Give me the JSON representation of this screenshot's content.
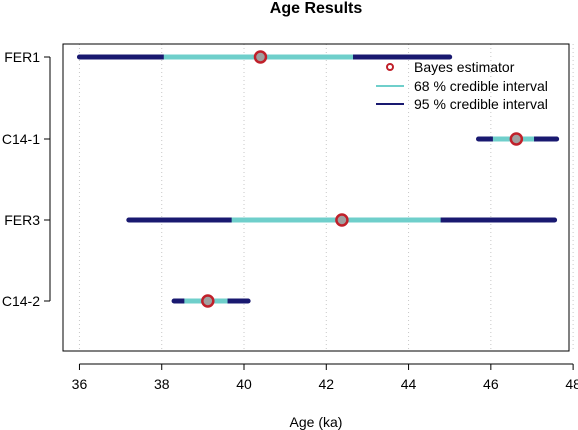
{
  "chart_data": {
    "type": "interval",
    "title": "Age Results",
    "xlabel": "Age (ka)",
    "ylabel": "",
    "xlim": [
      35.6,
      47.9
    ],
    "xticks": [
      36,
      38,
      40,
      42,
      44,
      46,
      48
    ],
    "grid": "vertical dotted",
    "legend_position": "top-right",
    "legend": [
      {
        "label": "Bayes estimator",
        "kind": "point"
      },
      {
        "label": "68 % credible interval",
        "kind": "line68"
      },
      {
        "label": "95 % credible interval",
        "kind": "line95"
      }
    ],
    "colors": {
      "ci95": "#191970",
      "ci68": "#6fcfcb",
      "point_fill": "#a0a0a0",
      "point_edge": "#c0202a"
    },
    "samples": [
      {
        "name": "FER1",
        "bayes": 40.4,
        "ci68": [
          38.05,
          42.65
        ],
        "ci95": [
          36.0,
          45.0
        ]
      },
      {
        "name": "C14-1",
        "bayes": 46.62,
        "ci68": [
          46.05,
          47.05
        ],
        "ci95": [
          45.7,
          47.6
        ]
      },
      {
        "name": "FER3",
        "bayes": 42.38,
        "ci68": [
          39.7,
          44.78
        ],
        "ci95": [
          37.2,
          47.55
        ]
      },
      {
        "name": "C14-2",
        "bayes": 39.12,
        "ci68": [
          38.55,
          39.6
        ],
        "ci95": [
          38.3,
          40.1
        ]
      }
    ]
  }
}
